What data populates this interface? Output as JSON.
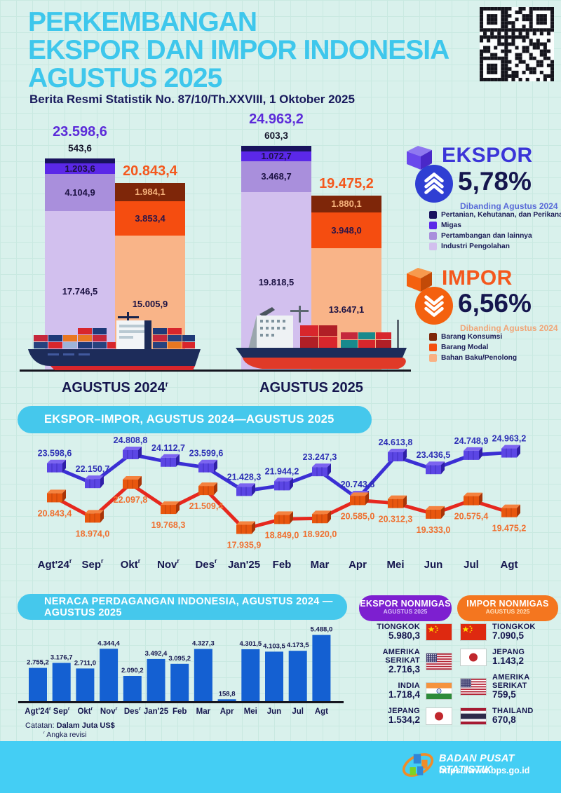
{
  "header": {
    "title_lines": [
      "PERKEMBANGAN",
      "EKSPOR DAN IMPOR INDONESIA",
      "AGUSTUS 2025"
    ],
    "subtitle": "Berita Resmi Statistik No. 87/10/Th.XXVIII, 1 Oktober 2025",
    "title_color": "#3ec7ec"
  },
  "summary": {
    "ekspor": {
      "label": "EKSPOR",
      "pct": "5,78%",
      "compare": "Dibanding Agustus 2024",
      "accent": "#3b35d8",
      "legend": [
        {
          "label": "Pertanian, Kehutanan, dan Perikanan",
          "color": "#19125e"
        },
        {
          "label": "Migas",
          "color": "#5b28e8"
        },
        {
          "label": "Pertambangan dan lainnya",
          "color": "#a98fdc"
        },
        {
          "label": "Industri Pengolahan",
          "color": "#d2c0ee"
        }
      ]
    },
    "impor": {
      "label": "IMPOR",
      "pct": "6,56%",
      "compare": "Dibanding Agustus 2024",
      "accent": "#f4581d",
      "legend": [
        {
          "label": "Barang Konsumsi",
          "color": "#7e2609"
        },
        {
          "label": "Barang Modal",
          "color": "#f4500f"
        },
        {
          "label": "Bahan Baku/Penolong",
          "color": "#f9b183"
        }
      ]
    }
  },
  "chart_data": [
    {
      "type": "bar",
      "subtype": "stacked",
      "unit": "Juta US$",
      "groups": [
        {
          "label": "AGUSTUS 2024",
          "sup": "r",
          "bars": [
            {
              "name": "ekspor",
              "total_label": "23.598,6",
              "total": 23598.6,
              "total_color": "#5c2bd9",
              "segments": [
                {
                  "name": "Pertanian, Kehutanan, dan Perikanan",
                  "label": "543,6",
                  "value": 543.6,
                  "color": "#19125e",
                  "outside": true
                },
                {
                  "name": "Migas",
                  "label": "1.203,6",
                  "value": 1203.6,
                  "color": "#5b28e8",
                  "text": "#1c1243"
                },
                {
                  "name": "Pertambangan dan lainnya",
                  "label": "4.104,9",
                  "value": 4104.9,
                  "color": "#a98fdc",
                  "text": "#1c1243"
                },
                {
                  "name": "Industri Pengolahan",
                  "label": "17.746,5",
                  "value": 17746.5,
                  "color": "#d2c0ee",
                  "text": "#1c1243"
                }
              ]
            },
            {
              "name": "impor",
              "total_label": "20.843,4",
              "total": 20843.4,
              "total_color": "#f4581d",
              "segments": [
                {
                  "name": "Barang Konsumsi",
                  "label": "1.984,1",
                  "value": 1984.1,
                  "color": "#7e2609",
                  "text": "#f6b27c"
                },
                {
                  "name": "Barang Modal",
                  "label": "3.853,4",
                  "value": 3853.4,
                  "color": "#f54d10",
                  "text": "#2a1548"
                },
                {
                  "name": "Bahan Baku/Penolong",
                  "label": "15.005,9",
                  "value": 15005.9,
                  "color": "#f9b488",
                  "text": "#1c1243"
                }
              ]
            }
          ]
        },
        {
          "label": "AGUSTUS 2025",
          "sup": null,
          "bars": [
            {
              "name": "ekspor",
              "total_label": "24.963,2",
              "total": 24963.2,
              "total_color": "#5c2bd9",
              "segments": [
                {
                  "name": "Pertanian, Kehutanan, dan Perikanan",
                  "label": "603,3",
                  "value": 603.3,
                  "color": "#19125e",
                  "outside": true
                },
                {
                  "name": "Migas",
                  "label": "1.072,7",
                  "value": 1072.7,
                  "color": "#5b28e8",
                  "text": "#1c1243"
                },
                {
                  "name": "Pertambangan dan lainnya",
                  "label": "3.468,7",
                  "value": 3468.7,
                  "color": "#a98fdc",
                  "text": "#1c1243"
                },
                {
                  "name": "Industri Pengolahan",
                  "label": "19.818,5",
                  "value": 19818.5,
                  "color": "#d2c0ee",
                  "text": "#1c1243"
                }
              ]
            },
            {
              "name": "impor",
              "total_label": "19.475,2",
              "total": 19475.2,
              "total_color": "#f4581d",
              "segments": [
                {
                  "name": "Barang Konsumsi",
                  "label": "1.880,1",
                  "value": 1880.1,
                  "color": "#7e2609",
                  "text": "#f6b27c"
                },
                {
                  "name": "Barang Modal",
                  "label": "3.948,0",
                  "value": 3948.0,
                  "color": "#f54d10",
                  "text": "#2a1548"
                },
                {
                  "name": "Bahan Baku/Penolong",
                  "label": "13.647,1",
                  "value": 13647.1,
                  "color": "#f9b488",
                  "text": "#1c1243"
                }
              ]
            }
          ]
        }
      ]
    },
    {
      "type": "line",
      "title": "EKSPOR–IMPOR, AGUSTUS 2024—AGUSTUS 2025",
      "categories": [
        {
          "label": "Agt'24",
          "sup": true
        },
        {
          "label": "Sep",
          "sup": true
        },
        {
          "label": "Okt",
          "sup": true
        },
        {
          "label": "Nov",
          "sup": true
        },
        {
          "label": "Des",
          "sup": true
        },
        {
          "label": "Jan'25",
          "sup": false
        },
        {
          "label": "Feb",
          "sup": false
        },
        {
          "label": "Mar",
          "sup": false
        },
        {
          "label": "Apr",
          "sup": false
        },
        {
          "label": "Mei",
          "sup": false
        },
        {
          "label": "Jun",
          "sup": false
        },
        {
          "label": "Jul",
          "sup": false
        },
        {
          "label": "Agt",
          "sup": false
        }
      ],
      "series": [
        {
          "name": "Ekspor",
          "color": "#3b2fd4",
          "marker_color": "#5b46e4",
          "marker_top": "#7c64f0",
          "marker_side": "#2f1fa8",
          "label_color": "#2d2fb5",
          "label_pos": "above",
          "values": [
            23598.6,
            22150.7,
            24808.8,
            24112.7,
            23599.6,
            21428.3,
            21944.2,
            23247.3,
            20743.8,
            24613.8,
            23436.5,
            24748.9,
            24963.2
          ],
          "labels": [
            "23.598,6",
            "22.150,7",
            "24.808,8",
            "24.112,7",
            "23.599,6",
            "21.428,3",
            "21.944,2",
            "23.247,3",
            "20.743,8",
            "24.613,8",
            "23.436,5",
            "24.748,9",
            "24.963,2"
          ]
        },
        {
          "name": "Impor",
          "color": "#e6281e",
          "marker_color": "#e8560e",
          "marker_top": "#f4823f",
          "marker_side": "#a83508",
          "label_color": "#ef7030",
          "label_pos": "below",
          "values": [
            20843.4,
            18974.0,
            22097.8,
            19768.3,
            21509.4,
            17935.9,
            18849.0,
            18920.0,
            20585.0,
            20312.3,
            19333.0,
            20575.4,
            19475.2
          ],
          "labels": [
            "20.843,4",
            "18.974,0",
            "22.097,8",
            "19.768,3",
            "21.509,4",
            "17.935,9",
            "18.849,0",
            "18.920,0",
            "20.585,0",
            "20.312,3",
            "19.333,0",
            "20.575,4",
            "19.475,2"
          ]
        }
      ]
    },
    {
      "type": "bar",
      "title": "NERACA PERDAGANGAN INDONESIA, AGUSTUS 2024 — AGUSTUS 2025",
      "bar_color": "#1460d2",
      "categories": [
        {
          "label": "Agt'24",
          "sup": true
        },
        {
          "label": "Sep",
          "sup": true
        },
        {
          "label": "Okt",
          "sup": true
        },
        {
          "label": "Nov",
          "sup": true
        },
        {
          "label": "Des",
          "sup": true
        },
        {
          "label": "Jan'25",
          "sup": false
        },
        {
          "label": "Feb",
          "sup": false
        },
        {
          "label": "Mar",
          "sup": false
        },
        {
          "label": "Apr",
          "sup": false
        },
        {
          "label": "Mei",
          "sup": false
        },
        {
          "label": "Jun",
          "sup": false
        },
        {
          "label": "Jul",
          "sup": false
        },
        {
          "label": "Agt",
          "sup": false
        }
      ],
      "values": [
        2755.2,
        3176.7,
        2711.0,
        4344.4,
        2090.2,
        3492.4,
        3095.2,
        4327.3,
        158.8,
        4301.5,
        4103.5,
        4173.5,
        5488.0
      ],
      "labels": [
        "2.755,2",
        "3.176,7",
        "2.711,0",
        "4.344,4",
        "2.090,2",
        "3.492,4",
        "3.095,2",
        "4.327,3",
        "158,8",
        "4.301,5",
        "4.103,5",
        "4.173,5",
        "5.488,0"
      ]
    }
  ],
  "nonmigas": {
    "ekspor": {
      "title": "EKSPOR NONMIGAS",
      "subtitle": "AGUSTUS 2025",
      "color": "#7d1fd0",
      "flag_side": "right",
      "rows": [
        {
          "country": "TIONGKOK",
          "value": "5.980,3",
          "flag": "cn"
        },
        {
          "country": "AMERIKA SERIKAT",
          "value": "2.716,3",
          "flag": "us"
        },
        {
          "country": "INDIA",
          "value": "1.718,4",
          "flag": "in"
        },
        {
          "country": "JEPANG",
          "value": "1.534,2",
          "flag": "jp"
        }
      ]
    },
    "impor": {
      "title": "IMPOR NONMIGAS",
      "subtitle": "AGUSTUS 2025",
      "color": "#f4761f",
      "flag_side": "left",
      "rows": [
        {
          "country": "TIONGKOK",
          "value": "7.090,5",
          "flag": "cn"
        },
        {
          "country": "JEPANG",
          "value": "1.143,2",
          "flag": "jp"
        },
        {
          "country": "AMERIKA SERIKAT",
          "value": "759,5",
          "flag": "us"
        },
        {
          "country": "THAILAND",
          "value": "670,8",
          "flag": "th"
        }
      ]
    }
  },
  "notes": {
    "catatan_label": "Catatan:",
    "catatan_value": "Dalam Juta US$",
    "revisi_sup": "r",
    "revisi": "Angka revisi"
  },
  "footer": {
    "org": "BADAN PUSAT STATISTIK",
    "url": "https://www.bps.go.id",
    "band_color": "#44cef4"
  }
}
